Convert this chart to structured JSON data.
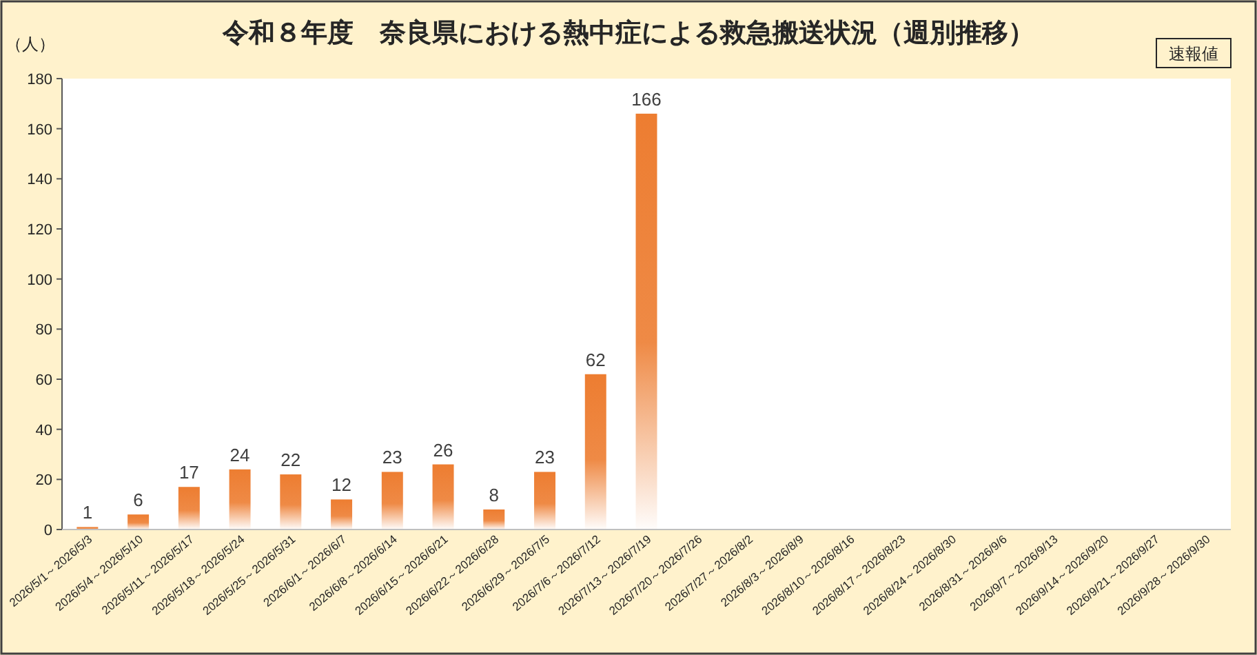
{
  "chart_data": {
    "type": "bar",
    "title": "令和８年度　奈良県における熱中症による救急搬送状況（週別推移）",
    "ylabel": "（人）",
    "annotations": [
      "速報値"
    ],
    "categories": [
      "2026/5/1～2026/5/3",
      "2026/5/4～2026/5/10",
      "2026/5/11～2026/5/17",
      "2026/5/18～2026/5/24",
      "2026/5/25～2026/5/31",
      "2026/6/1～2026/6/7",
      "2026/6/8～2026/6/14",
      "2026/6/15～2026/6/21",
      "2026/6/22～2026/6/28",
      "2026/6/29～2026/7/5",
      "2026/7/6～2026/7/12",
      "2026/7/13～2026/7/19",
      "2026/7/20～2026/7/26",
      "2026/7/27～2026/8/2",
      "2026/8/3～2026/8/9",
      "2026/8/10～2026/8/16",
      "2026/8/17～2026/8/23",
      "2026/8/24～2026/8/30",
      "2026/8/31～2026/9/6",
      "2026/9/7～2026/9/13",
      "2026/9/14～2026/9/20",
      "2026/9/21～2026/9/27",
      "2026/9/28～2026/9/30"
    ],
    "values": [
      1,
      6,
      17,
      24,
      22,
      12,
      23,
      26,
      8,
      23,
      62,
      166,
      null,
      null,
      null,
      null,
      null,
      null,
      null,
      null,
      null,
      null,
      null
    ],
    "color": "#ed7d31",
    "ylim": [
      0,
      180
    ],
    "yticks": [
      0,
      20,
      40,
      60,
      80,
      100,
      120,
      140,
      160,
      180
    ],
    "grid": false,
    "data_labels": true
  }
}
